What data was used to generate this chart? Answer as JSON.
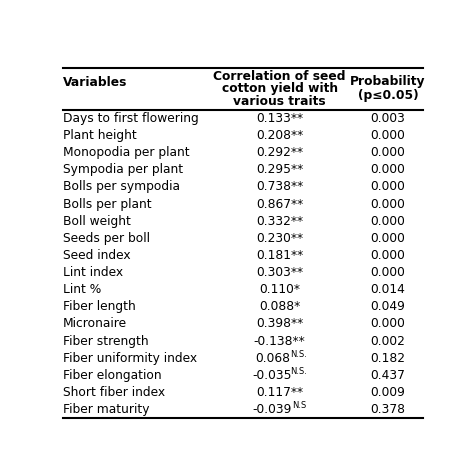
{
  "rows": [
    [
      "Days to first flowering",
      "0.133",
      "**",
      "0.003"
    ],
    [
      "Plant height",
      "0.208",
      "**",
      "0.000"
    ],
    [
      "Monopodia per plant",
      "0.292",
      "**",
      "0.000"
    ],
    [
      "Sympodia per plant",
      "0.295",
      "**",
      "0.000"
    ],
    [
      "Bolls per sympodia",
      "0.738",
      "**",
      "0.000"
    ],
    [
      "Bolls per plant",
      "0.867",
      "**",
      "0.000"
    ],
    [
      "Boll weight",
      "0.332",
      "**",
      "0.000"
    ],
    [
      "Seeds per boll",
      "0.230",
      "**",
      "0.000"
    ],
    [
      "Seed index",
      "0.181",
      "**",
      "0.000"
    ],
    [
      "Lint index",
      "0.303",
      "**",
      "0.000"
    ],
    [
      "Lint %",
      "0.110",
      "*",
      "0.014"
    ],
    [
      "Fiber length",
      "0.088",
      "*",
      "0.049"
    ],
    [
      "Micronaire",
      "0.398",
      "**",
      "0.000"
    ],
    [
      "Fiber strength",
      "-0.138",
      "**",
      "0.002"
    ],
    [
      "Fiber uniformity index",
      "0.068",
      "N.S.",
      "0.182"
    ],
    [
      "Fiber elongation",
      "-0.035",
      "N.S.",
      "0.437"
    ],
    [
      "Short fiber index",
      "0.117",
      "**",
      "0.009"
    ],
    [
      "Fiber maturity",
      "-0.039",
      "N.S",
      "0.378"
    ]
  ],
  "col1_header": "Variables",
  "col2_header_line1": "Correlation of seed",
  "col2_header_line2": "cotton yield with",
  "col2_header_line3": "various traits",
  "col3_header_line1": "Probability",
  "col3_header_line2": "(p≤0.05)",
  "background_color": "#ffffff",
  "text_color": "#000000",
  "font_size": 8.8,
  "header_font_size": 8.8,
  "sup_font_size": 6.0
}
